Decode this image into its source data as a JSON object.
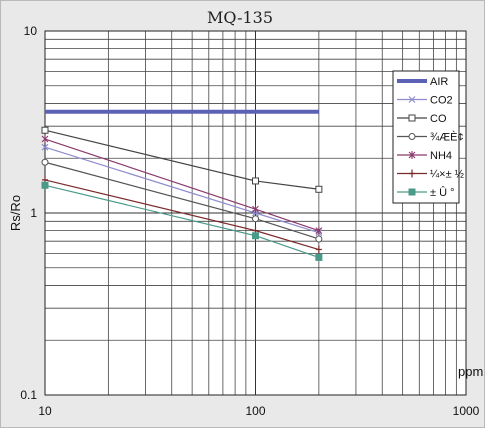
{
  "chart_data": {
    "type": "line",
    "title": "MQ-135",
    "xlabel": "ppm",
    "ylabel": "Rs/Ro",
    "x_scale": "log",
    "y_scale": "log",
    "xlim": [
      10,
      1000
    ],
    "ylim": [
      0.1,
      10
    ],
    "x_ticks": [
      "10",
      "100",
      "1000"
    ],
    "y_ticks": [
      "10",
      "1",
      "0.1"
    ],
    "grid": true,
    "legend_position": "top-right",
    "series": [
      {
        "name": "AIR",
        "color": "#5b62b5",
        "marker": "none",
        "x": [
          10,
          200
        ],
        "y": [
          3.6,
          3.6
        ]
      },
      {
        "name": "CO2",
        "color": "#8e8ccf",
        "marker": "x",
        "x": [
          10,
          100,
          200
        ],
        "y": [
          2.3,
          1.0,
          0.78
        ]
      },
      {
        "name": "CO",
        "color": "#444444",
        "marker": "square",
        "x": [
          10,
          100,
          200
        ],
        "y": [
          2.85,
          1.5,
          1.35
        ]
      },
      {
        "name": "¾ÆÈ¢",
        "color": "#555555",
        "marker": "circle",
        "x": [
          10,
          100,
          200
        ],
        "y": [
          1.9,
          0.93,
          0.72
        ]
      },
      {
        "name": "NH4",
        "color": "#8a3a6c",
        "marker": "star",
        "x": [
          10,
          100,
          200
        ],
        "y": [
          2.55,
          1.05,
          0.8
        ]
      },
      {
        "name": "¼×± ½",
        "color": "#7a2a2a",
        "marker": "plus",
        "x": [
          10,
          100,
          200
        ],
        "y": [
          1.52,
          0.8,
          0.63
        ]
      },
      {
        "name": "± Û °",
        "color": "#4a9a8a",
        "marker": "filled-square",
        "x": [
          10,
          100,
          200
        ],
        "y": [
          1.42,
          0.75,
          0.57
        ]
      }
    ]
  }
}
